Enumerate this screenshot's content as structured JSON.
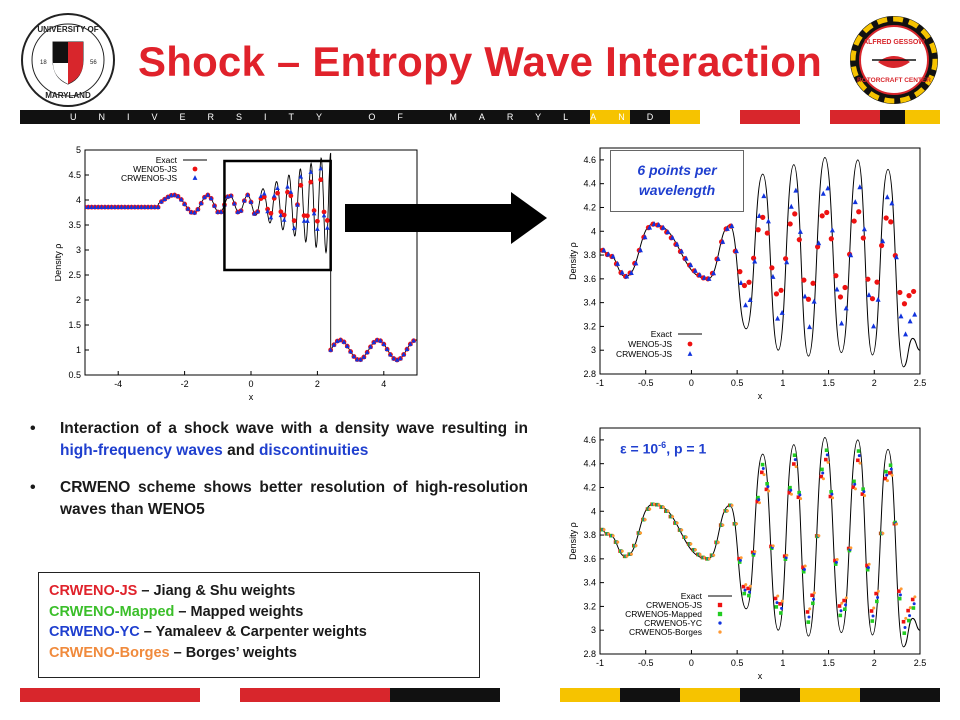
{
  "title": "Shock – Entropy Wave Interaction",
  "banner_text": "UNIVERSITY OF MARYLAND",
  "logos": {
    "left": "university-of-maryland-seal",
    "right": "alfred-gessow-rotorcraft-center-logo"
  },
  "bullets": [
    {
      "pre": "Interaction of a shock wave with a density wave resulting in ",
      "highlight": "high-frequency waves",
      "mid": " and ",
      "highlight2": "discontinuities",
      "post": ""
    },
    {
      "text": "CRWENO scheme shows better resolution of high-resolution waves than WENO5"
    }
  ],
  "legend_box": [
    {
      "name": "CRWENO-JS",
      "desc": " – Jiang & Shu weights",
      "color": "#e0222b"
    },
    {
      "name": "CRWENO-Mapped",
      "desc": " – Mapped weights",
      "color": "#3bbf2a"
    },
    {
      "name": "CRWENO-YC",
      "desc": " – Yamaleev & Carpenter weights",
      "color": "#1f3fcf"
    },
    {
      "name": "CRWENO-Borges",
      "desc": " – Borges’ weights",
      "color": "#f08a3c"
    }
  ],
  "annotations": {
    "points_per_wavelength": "6 points per wavelength",
    "eps_prefix": "ε = 10",
    "eps_exp": "-6",
    "eps_suffix": ", p = 1"
  },
  "chart_data": [
    {
      "type": "line",
      "xlabel": "x",
      "ylabel": "Density ρ",
      "xlim": [
        -5,
        5
      ],
      "ylim": [
        0.5,
        5
      ],
      "xticks": [
        -4,
        -2,
        0,
        2,
        4
      ],
      "yticks": [
        0.5,
        1,
        1.5,
        2,
        2.5,
        3,
        3.5,
        4,
        4.5,
        5
      ],
      "legend_placement": "top-left",
      "zoom_box": [
        -0.8,
        2.4
      ],
      "series": [
        {
          "name": "Exact",
          "style": "line",
          "color": "#000000"
        },
        {
          "name": "WENO5-JS",
          "style": "circle",
          "color": "#ee1111"
        },
        {
          "name": "CRWENO5-JS",
          "style": "triangle",
          "color": "#1133dd"
        }
      ],
      "profile": {
        "pre_shock": [
          [
            -5,
            3.857
          ],
          [
            -2.8,
            3.857
          ]
        ],
        "shock_x": 2.4,
        "post_shock_mean": 1.0,
        "post_shock_amplitude": 0.2,
        "post_shock_wavenumber": 5
      }
    },
    {
      "type": "line",
      "xlabel": "x",
      "ylabel": "Density ρ",
      "xlim": [
        -1,
        2.5
      ],
      "ylim": [
        2.8,
        4.7
      ],
      "xticks": [
        -1,
        -0.5,
        0,
        0.5,
        1,
        1.5,
        2,
        2.5
      ],
      "yticks": [
        2.8,
        3,
        3.2,
        3.4,
        3.6,
        3.8,
        4,
        4.2,
        4.4,
        4.6
      ],
      "legend_placement": "bottom-left",
      "series": [
        {
          "name": "Exact",
          "style": "line",
          "color": "#000000"
        },
        {
          "name": "WENO5-JS",
          "style": "circle",
          "color": "#ee1111"
        },
        {
          "name": "CRWENO5-JS",
          "style": "triangle",
          "color": "#1133dd"
        }
      ],
      "exact_peaks": [
        [
          -0.42,
          4.06
        ],
        [
          0.42,
          4.05
        ],
        [
          0.78,
          4.48
        ],
        [
          1.12,
          4.56
        ],
        [
          1.46,
          4.62
        ],
        [
          1.82,
          4.6
        ],
        [
          2.15,
          4.52
        ]
      ],
      "exact_troughs": [
        [
          -0.72,
          3.62
        ],
        [
          0.18,
          3.6
        ],
        [
          0.6,
          3.18
        ],
        [
          0.95,
          3.0
        ],
        [
          1.28,
          2.95
        ],
        [
          1.64,
          2.98
        ],
        [
          1.98,
          2.96
        ],
        [
          2.32,
          2.86
        ]
      ]
    },
    {
      "type": "line",
      "xlabel": "x",
      "ylabel": "Density ρ",
      "xlim": [
        -1,
        2.5
      ],
      "ylim": [
        2.8,
        4.7
      ],
      "xticks": [
        -1,
        -0.5,
        0,
        0.5,
        1,
        1.5,
        2,
        2.5
      ],
      "yticks": [
        2.8,
        3,
        3.2,
        3.4,
        3.6,
        3.8,
        4,
        4.2,
        4.4,
        4.6
      ],
      "legend_placement": "bottom-left",
      "series": [
        {
          "name": "Exact",
          "style": "line",
          "color": "#000000"
        },
        {
          "name": "CRWENO5-JS",
          "style": "square",
          "color": "#ee1111"
        },
        {
          "name": "CRWENO5-Mapped",
          "style": "square",
          "color": "#22cc22"
        },
        {
          "name": "CRWENO5-YC",
          "style": "dot",
          "color": "#1133dd"
        },
        {
          "name": "CRWENO5-Borges",
          "style": "dot",
          "color": "#ff9933"
        }
      ]
    }
  ]
}
